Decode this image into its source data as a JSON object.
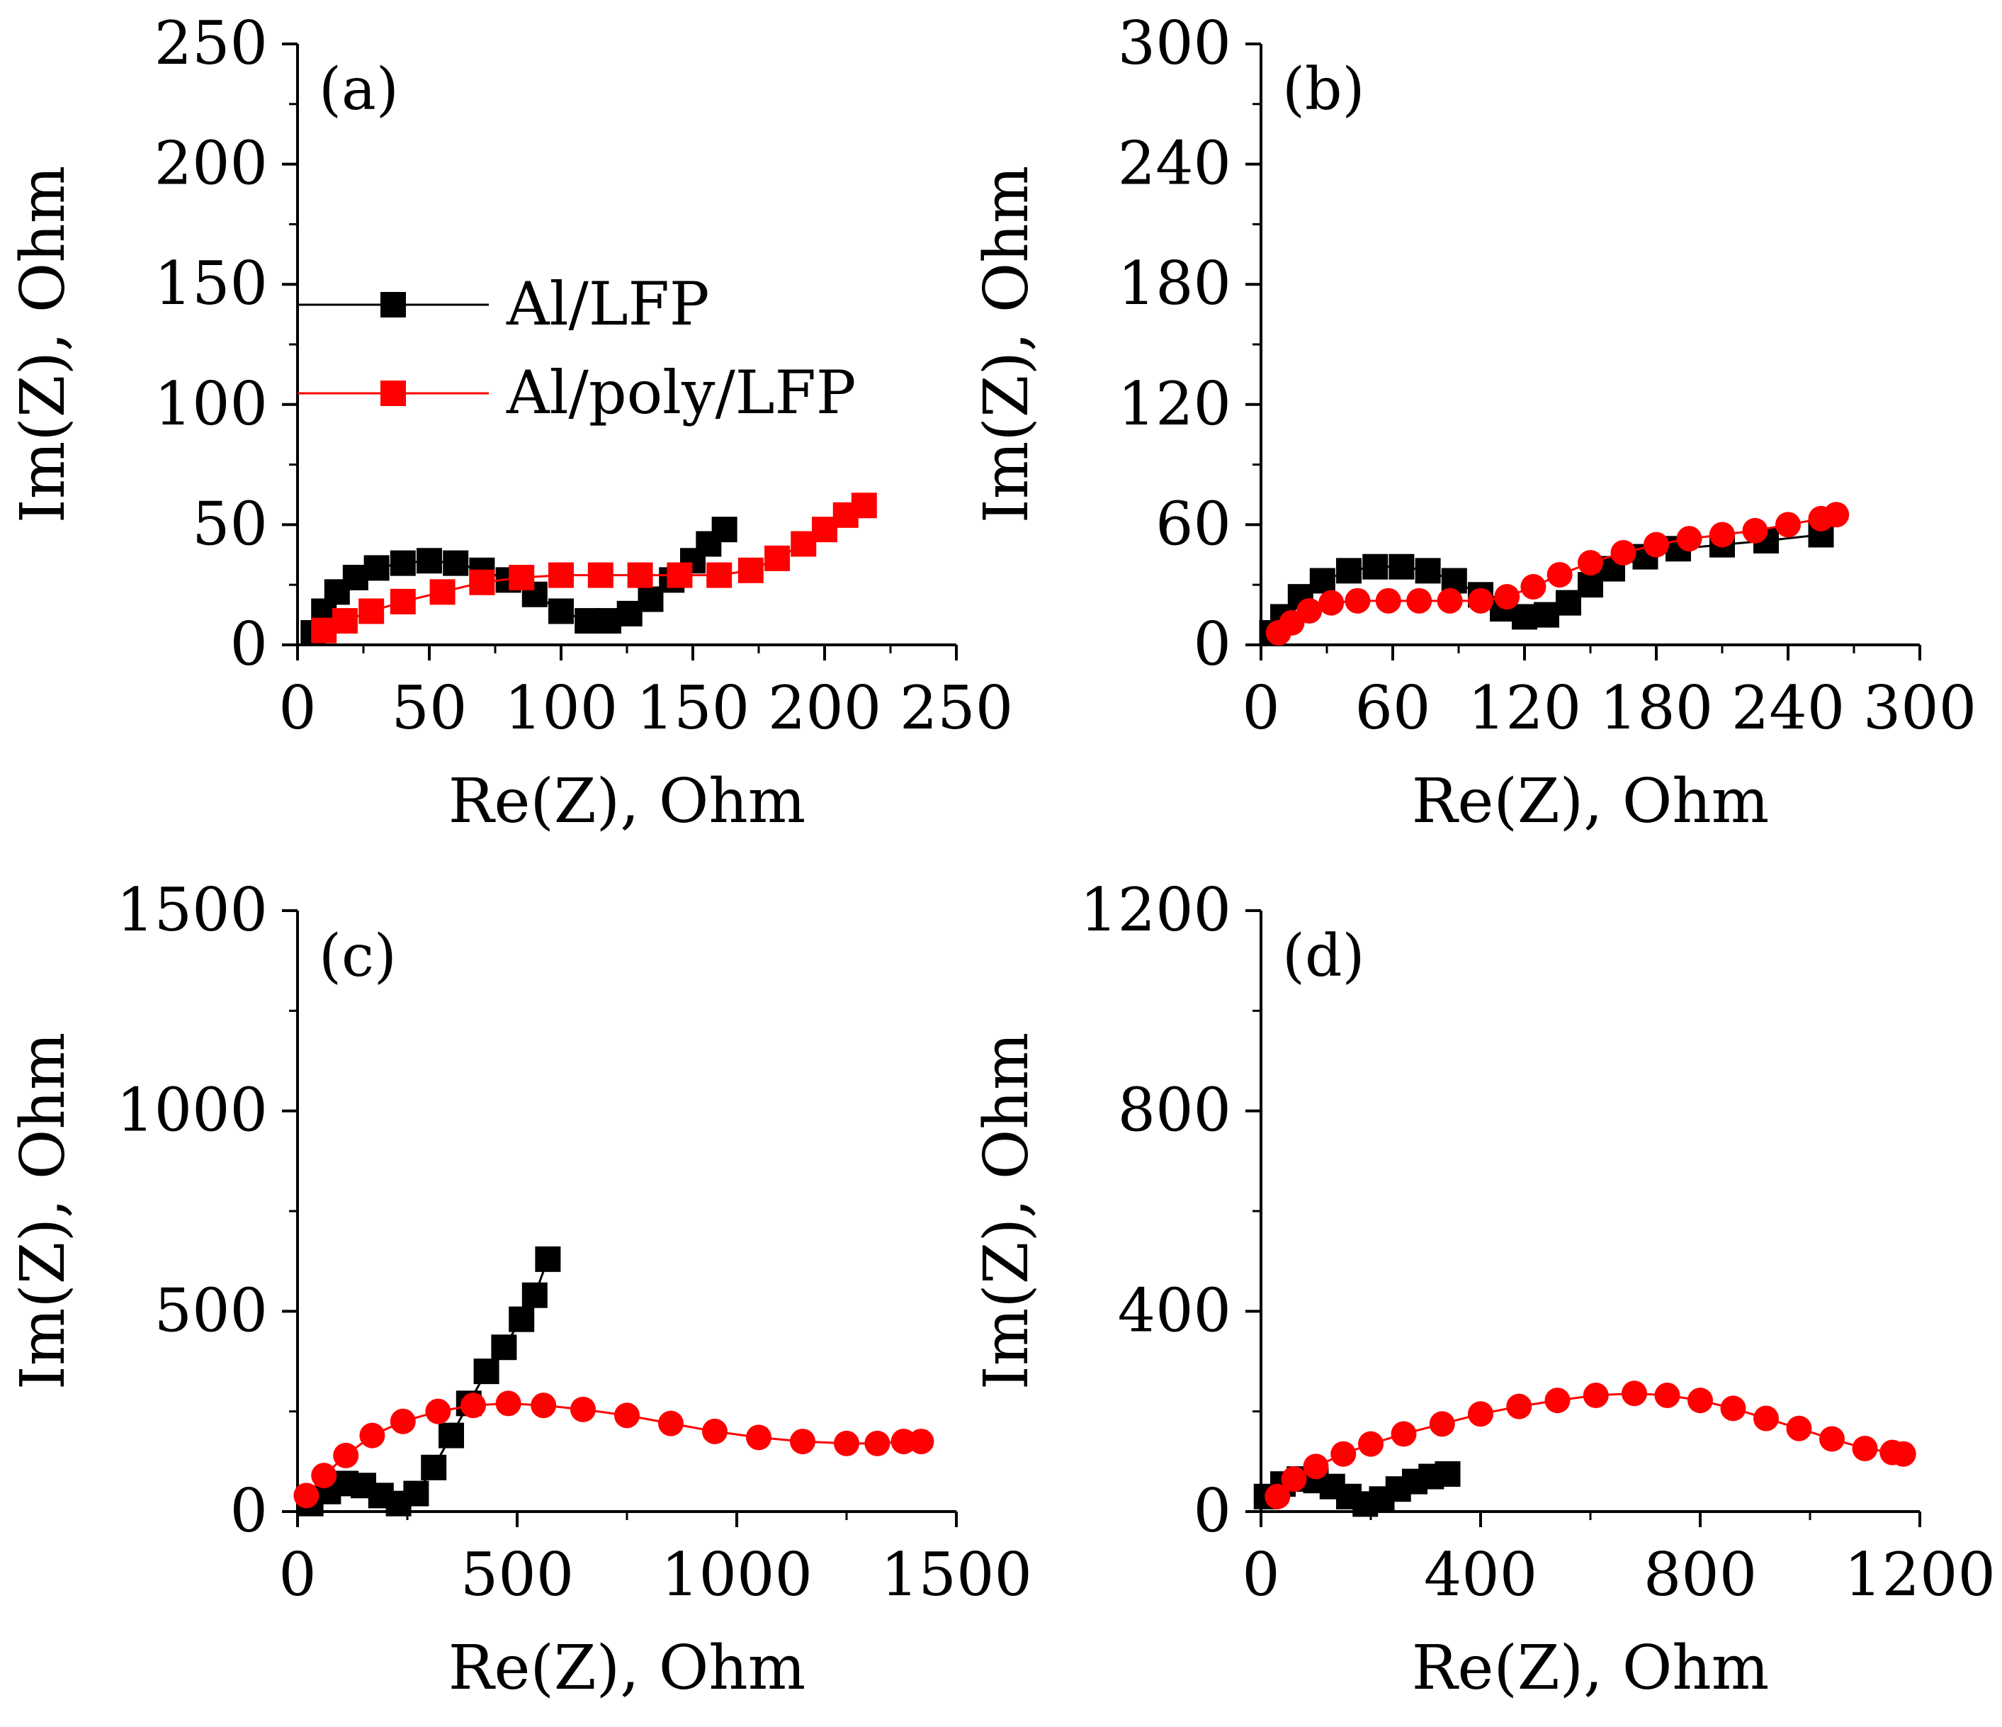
{
  "chart_data": [
    {
      "panel": "(a)",
      "type": "scatter",
      "xlabel": "Re(Z), Ohm",
      "ylabel": "Im(Z), Ohm",
      "xlim": [
        0,
        250
      ],
      "ylim": [
        0,
        250
      ],
      "xticks": [
        0,
        50,
        100,
        150,
        200,
        250
      ],
      "yticks": [
        0,
        50,
        100,
        150,
        200,
        250
      ],
      "legend": {
        "placement": "center-left",
        "entries": [
          "Al/LFP",
          "Al/poly/LFP"
        ]
      },
      "series": [
        {
          "name": "Al/LFP",
          "color": "#000000",
          "marker": "square",
          "x": [
            6,
            10,
            15,
            22,
            30,
            40,
            50,
            60,
            70,
            80,
            90,
            100,
            110,
            118,
            126,
            134,
            142,
            150,
            156,
            162
          ],
          "y": [
            5,
            14,
            22,
            28,
            32,
            34,
            35,
            34,
            31,
            27,
            21,
            14,
            10,
            10,
            13,
            19,
            27,
            35,
            42,
            48
          ]
        },
        {
          "name": "Al/poly/LFP",
          "color": "#ff0000",
          "marker": "square",
          "x": [
            10,
            18,
            28,
            40,
            55,
            70,
            85,
            100,
            115,
            130,
            145,
            160,
            172,
            182,
            192,
            200,
            208,
            215
          ],
          "y": [
            6,
            10,
            14,
            18,
            22,
            26,
            28,
            29,
            29,
            29,
            29,
            29,
            31,
            36,
            42,
            48,
            54,
            58
          ]
        }
      ]
    },
    {
      "panel": "(b)",
      "type": "scatter",
      "xlabel": "Re(Z), Ohm",
      "ylabel": "Im(Z), Ohm",
      "xlim": [
        0,
        300
      ],
      "ylim": [
        0,
        300
      ],
      "xticks": [
        0,
        60,
        120,
        180,
        240,
        300
      ],
      "yticks": [
        0,
        60,
        120,
        180,
        240,
        300
      ],
      "series": [
        {
          "name": "Al/LFP",
          "color": "#000000",
          "marker": "square",
          "x": [
            5,
            10,
            18,
            28,
            40,
            52,
            64,
            76,
            88,
            100,
            110,
            120,
            130,
            140,
            150,
            160,
            175,
            190,
            210,
            230,
            255
          ],
          "y": [
            6,
            14,
            24,
            32,
            37,
            39,
            39,
            37,
            32,
            25,
            18,
            14,
            15,
            21,
            30,
            38,
            44,
            48,
            50,
            52,
            55
          ]
        },
        {
          "name": "Al/poly/LFP",
          "color": "#ff0000",
          "marker": "circle",
          "x": [
            8,
            14,
            22,
            32,
            44,
            58,
            72,
            86,
            100,
            112,
            124,
            136,
            150,
            165,
            180,
            195,
            210,
            225,
            240,
            255,
            262
          ],
          "y": [
            6,
            11,
            17,
            21,
            22,
            22,
            22,
            22,
            22,
            24,
            29,
            35,
            41,
            46,
            50,
            53,
            55,
            57,
            60,
            63,
            65
          ]
        }
      ]
    },
    {
      "panel": "(c)",
      "type": "scatter",
      "xlabel": "Re(Z), Ohm",
      "ylabel": "Im(Z), Ohm",
      "xlim": [
        0,
        1500
      ],
      "ylim": [
        0,
        1500
      ],
      "xticks": [
        0,
        500,
        1000,
        1500
      ],
      "yticks": [
        0,
        500,
        1000,
        1500
      ],
      "series": [
        {
          "name": "Al/LFP",
          "color": "#000000",
          "marker": "square",
          "x": [
            30,
            70,
            110,
            150,
            190,
            230,
            270,
            310,
            350,
            390,
            430,
            470,
            510,
            540,
            570
          ],
          "y": [
            20,
            50,
            70,
            65,
            40,
            20,
            45,
            110,
            190,
            270,
            350,
            410,
            480,
            540,
            630
          ]
        },
        {
          "name": "Al/poly/LFP",
          "color": "#ff0000",
          "marker": "circle",
          "x": [
            20,
            60,
            110,
            170,
            240,
            320,
            400,
            480,
            560,
            650,
            750,
            850,
            950,
            1050,
            1150,
            1250,
            1320,
            1380,
            1420
          ],
          "y": [
            40,
            90,
            140,
            190,
            225,
            250,
            265,
            270,
            265,
            255,
            240,
            220,
            200,
            185,
            175,
            170,
            170,
            175,
            175
          ]
        }
      ]
    },
    {
      "panel": "(d)",
      "type": "scatter",
      "xlabel": "Re(Z), Ohm",
      "ylabel": "Im(Z), Ohm",
      "xlim": [
        0,
        1200
      ],
      "ylim": [
        0,
        1200
      ],
      "xticks": [
        0,
        400,
        800,
        1200
      ],
      "yticks": [
        0,
        400,
        800,
        1200
      ],
      "series": [
        {
          "name": "Al/LFP",
          "color": "#000000",
          "marker": "square",
          "x": [
            10,
            40,
            70,
            100,
            130,
            160,
            190,
            220,
            250,
            280,
            310,
            340
          ],
          "y": [
            30,
            55,
            65,
            62,
            50,
            30,
            15,
            25,
            45,
            60,
            70,
            75
          ]
        },
        {
          "name": "Al/poly/LFP",
          "color": "#ff0000",
          "marker": "circle",
          "x": [
            30,
            60,
            100,
            150,
            200,
            260,
            330,
            400,
            470,
            540,
            610,
            680,
            740,
            800,
            860,
            920,
            980,
            1040,
            1100,
            1150,
            1170
          ],
          "y": [
            30,
            65,
            90,
            115,
            135,
            155,
            175,
            195,
            210,
            222,
            232,
            236,
            232,
            222,
            206,
            186,
            166,
            145,
            126,
            118,
            115
          ]
        }
      ]
    }
  ]
}
